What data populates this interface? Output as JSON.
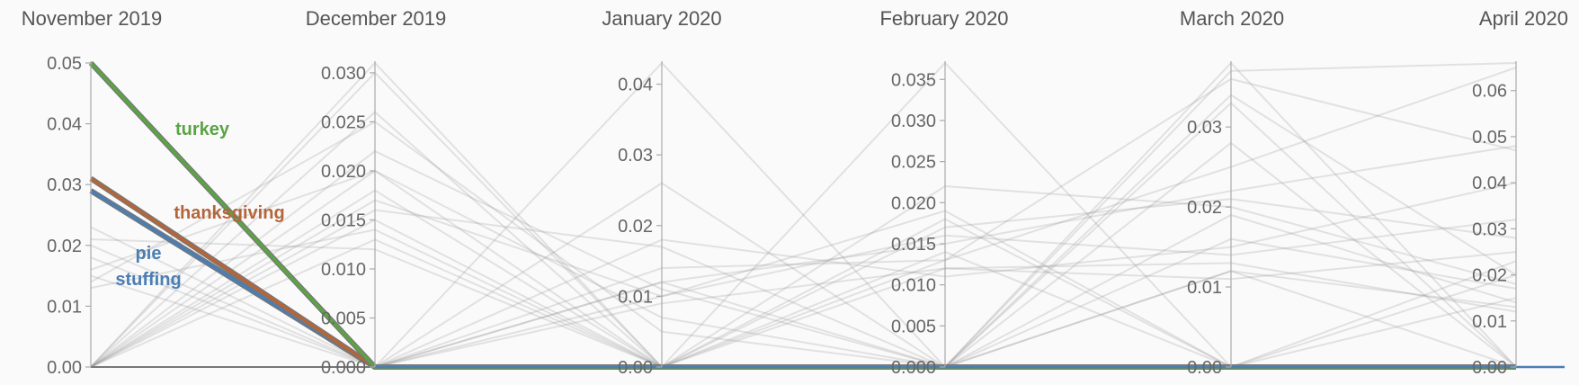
{
  "chart_data": {
    "type": "line",
    "axes": [
      {
        "title": "November 2019",
        "ylim": [
          0,
          0.05
        ],
        "ticks": [
          0,
          0.01,
          0.02,
          0.03,
          0.04,
          0.05
        ],
        "tick_labels": [
          "0.00",
          "0.01",
          "0.02",
          "0.03",
          "0.04",
          "0.05"
        ]
      },
      {
        "title": "December 2019",
        "ylim": [
          0,
          0.031
        ],
        "ticks": [
          0,
          0.005,
          0.01,
          0.015,
          0.02,
          0.025,
          0.03
        ],
        "tick_labels": [
          "0.000",
          "0.005",
          "0.010",
          "0.015",
          "0.020",
          "0.025",
          "0.030"
        ]
      },
      {
        "title": "January 2020",
        "ylim": [
          0,
          0.043
        ],
        "ticks": [
          0,
          0.01,
          0.02,
          0.03,
          0.04
        ],
        "tick_labels": [
          "0.00",
          "0.01",
          "0.02",
          "0.03",
          "0.04"
        ]
      },
      {
        "title": "February 2020",
        "ylim": [
          0,
          0.037
        ],
        "ticks": [
          0,
          0.005,
          0.01,
          0.015,
          0.02,
          0.025,
          0.03,
          0.035
        ],
        "tick_labels": [
          "0.000",
          "0.005",
          "0.010",
          "0.015",
          "0.020",
          "0.025",
          "0.030",
          "0.035"
        ]
      },
      {
        "title": "March 2020",
        "ylim": [
          0,
          0.038
        ],
        "ticks": [
          0,
          0.01,
          0.02,
          0.03
        ],
        "tick_labels": [
          "0.00",
          "0.01",
          "0.02",
          "0.03"
        ]
      },
      {
        "title": "April 2020",
        "ylim": [
          0,
          0.066
        ],
        "ticks": [
          0,
          0.01,
          0.02,
          0.03,
          0.04,
          0.05,
          0.06
        ],
        "tick_labels": [
          "0.00",
          "0.01",
          "0.02",
          "0.03",
          "0.04",
          "0.05",
          "0.06"
        ]
      }
    ],
    "highlighted": [
      {
        "name": "turkey",
        "color": "#5aa444",
        "values": [
          0.05,
          0,
          0,
          0,
          0,
          0
        ]
      },
      {
        "name": "thanksgiving",
        "color": "#b5653a",
        "values": [
          0.031,
          0,
          0,
          0,
          0,
          0
        ]
      },
      {
        "name": "pie",
        "color": "#4b7eb3",
        "values": [
          0.029,
          0,
          0,
          0,
          0,
          0
        ]
      },
      {
        "name": "stuffing",
        "color": "#4b7eb3",
        "values": [
          0.029,
          0,
          0,
          0,
          0,
          0
        ]
      }
    ],
    "background_series": [
      [
        0,
        0.031,
        0,
        0,
        0,
        0
      ],
      [
        0,
        0.026,
        0,
        0.037,
        0,
        0
      ],
      [
        0,
        0.018,
        0,
        0,
        0.038,
        0
      ],
      [
        0,
        0.016,
        0.017,
        0,
        0,
        0
      ],
      [
        0,
        0.013,
        0,
        0,
        0.033,
        0
      ],
      [
        0,
        0.015,
        0,
        0.014,
        0,
        0
      ],
      [
        0.023,
        0,
        0.043,
        0,
        0,
        0
      ],
      [
        0.02,
        0,
        0.026,
        0,
        0,
        0.023
      ],
      [
        0.018,
        0,
        0.012,
        0,
        0,
        0.02
      ],
      [
        0.015,
        0,
        0,
        0.022,
        0.02,
        0.018
      ],
      [
        0.013,
        0.014,
        0,
        0,
        0.028,
        0
      ],
      [
        0.021,
        0.012,
        0,
        0.018,
        0,
        0
      ],
      [
        0,
        0.02,
        0,
        0,
        0.037,
        0.066
      ],
      [
        0,
        0.022,
        0.011,
        0,
        0.012,
        0
      ],
      [
        0,
        0.017,
        0.01,
        0.016,
        0.014,
        0.032
      ],
      [
        0,
        0,
        0.014,
        0.013,
        0.025,
        0.065
      ],
      [
        0,
        0,
        0.012,
        0.015,
        0.022,
        0.048
      ],
      [
        0,
        0,
        0.018,
        0.011,
        0.015,
        0.04
      ],
      [
        0,
        0,
        0.009,
        0.012,
        0.011,
        0.025
      ],
      [
        0,
        0,
        0.01,
        0.019,
        0,
        0.015
      ],
      [
        0,
        0,
        0,
        0.013,
        0.036,
        0.047
      ],
      [
        0,
        0,
        0,
        0.012,
        0.013,
        0.012
      ],
      [
        0,
        0,
        0,
        0.017,
        0.021,
        0.028
      ],
      [
        0,
        0,
        0,
        0,
        0.034,
        0.02
      ],
      [
        0,
        0,
        0,
        0,
        0.019,
        0.014
      ],
      [
        0,
        0,
        0,
        0,
        0.012,
        0.013
      ],
      [
        0.016,
        0.02,
        0.007,
        0,
        0,
        0
      ],
      [
        0.014,
        0.025,
        0.005,
        0,
        0,
        0
      ],
      [
        0,
        0.03,
        0,
        0,
        0.016,
        0.017
      ]
    ],
    "grid": false
  }
}
